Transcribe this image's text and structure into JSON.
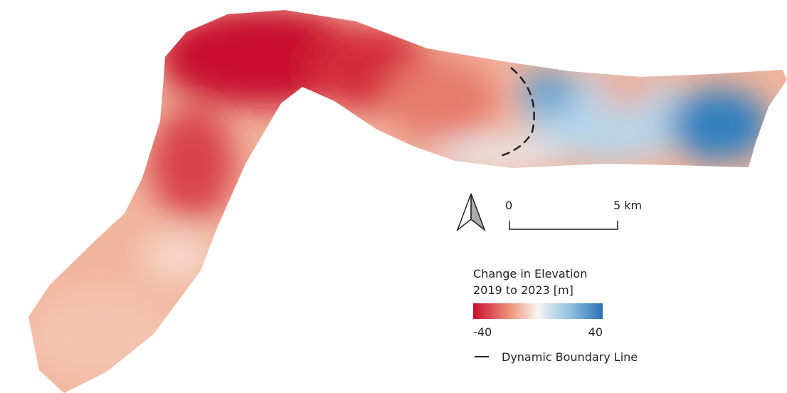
{
  "scale_bar": {
    "start_label": "0",
    "end_label": "5 km"
  },
  "legend": {
    "title_line1": "Change in Elevation",
    "title_line2": "2019 to 2023 [m]",
    "min": -40,
    "max": 40,
    "boundary_label": "Dynamic Boundary Line"
  }
}
